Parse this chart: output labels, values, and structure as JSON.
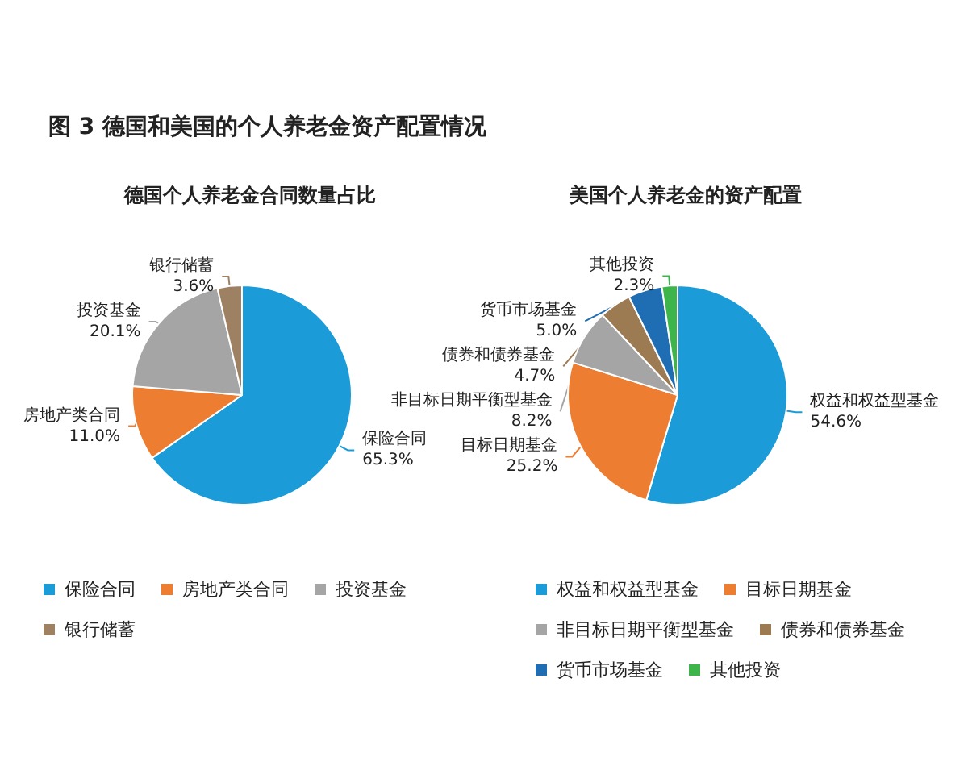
{
  "chart_data": [
    {
      "type": "pie",
      "title": "图 3  德国和美国的个人养老金资产配置情况",
      "subtitle": "德国个人养老金合同数量占比",
      "categories": [
        "保险合同",
        "房地产类合同",
        "投资基金",
        "银行储蓄"
      ],
      "values": [
        65.3,
        11.0,
        20.1,
        3.6
      ],
      "colors": [
        "#1b9bd7",
        "#ed7d31",
        "#a5a5a5",
        "#9e8062"
      ],
      "value_labels": [
        "65.3%",
        "11.0%",
        "20.1%",
        "3.6%"
      ],
      "legend": "bottom"
    },
    {
      "type": "pie",
      "title": "美国个人养老金的资产配置",
      "categories": [
        "权益和权益型基金",
        "目标日期基金",
        "非目标日期平衡型基金",
        "债券和债券基金",
        "货币市场基金",
        "其他投资"
      ],
      "values": [
        54.6,
        25.2,
        8.2,
        4.7,
        5.0,
        2.3
      ],
      "colors": [
        "#1b9bd7",
        "#ed7d31",
        "#a5a5a5",
        "#9c7b52",
        "#1f6db3",
        "#3db54a"
      ],
      "value_labels": [
        "54.6%",
        "25.2%",
        "8.2%",
        "4.7%",
        "5.0%",
        "2.3%"
      ],
      "legend": "bottom"
    }
  ]
}
